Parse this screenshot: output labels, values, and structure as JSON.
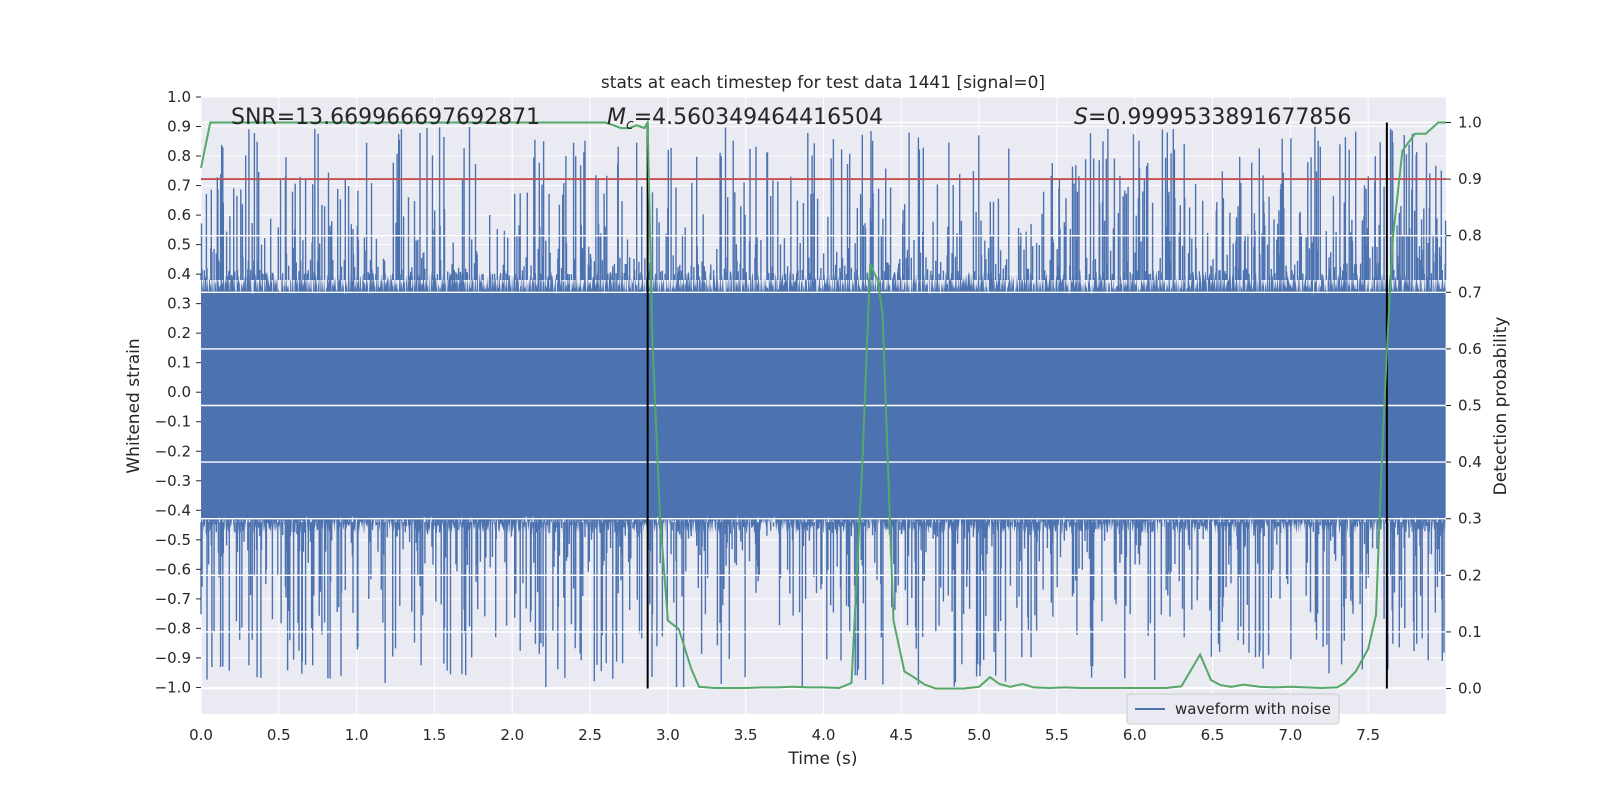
{
  "chart_data": {
    "type": "line",
    "title": "stats at each timestep for test data 1441 [signal=0]",
    "xlabel": "Time (s)",
    "ylabel_left": "Whitened strain",
    "ylabel_right": "Detection probability",
    "xlim": [
      0.0,
      8.0
    ],
    "ylim_left": [
      -1.09,
      1.0
    ],
    "ylim_right": [
      -0.045,
      1.045
    ],
    "x_ticks": [
      0.0,
      0.5,
      1.0,
      1.5,
      2.0,
      2.5,
      3.0,
      3.5,
      4.0,
      4.5,
      5.0,
      5.5,
      6.0,
      6.5,
      7.0,
      7.5
    ],
    "x_tick_labels": [
      "0.0",
      "0.5",
      "1.0",
      "1.5",
      "2.0",
      "2.5",
      "3.0",
      "3.5",
      "4.0",
      "4.5",
      "5.0",
      "5.5",
      "6.0",
      "6.5",
      "7.0",
      "7.5"
    ],
    "y_left_ticks": [
      1.0,
      0.9,
      0.8,
      0.7,
      0.6,
      0.5,
      0.4,
      0.3,
      0.2,
      0.1,
      0.0,
      -0.1,
      -0.2,
      -0.3,
      -0.4,
      -0.5,
      -0.6,
      -0.7,
      -0.8,
      -0.9,
      -1.0
    ],
    "y_left_tick_labels": [
      "1.0",
      "0.9",
      "0.8",
      "0.7",
      "0.6",
      "0.5",
      "0.4",
      "0.3",
      "0.2",
      "0.1",
      "0.0",
      "−0.1",
      "−0.2",
      "−0.3",
      "−0.4",
      "−0.5",
      "−0.6",
      "−0.7",
      "−0.8",
      "−0.9",
      "−1.0"
    ],
    "y_right_ticks": [
      1.0,
      0.9,
      0.8,
      0.7,
      0.6,
      0.5,
      0.4,
      0.3,
      0.2,
      0.1,
      0.0
    ],
    "y_right_tick_labels": [
      "1.0",
      "0.9",
      "0.8",
      "0.7",
      "0.6",
      "0.5",
      "0.4",
      "0.3",
      "0.2",
      "0.1",
      "0.0"
    ],
    "grid": true,
    "annotations": {
      "snr": "SNR=13.669966697692871",
      "mc_symbol": "M",
      "mc_subscript": "c",
      "mc_value": "=4.560349464416504",
      "s_symbol": "S",
      "s_value": "=0.9999533891677856"
    },
    "threshold": {
      "value": 0.9,
      "axis": "right",
      "color": "#c44e52"
    },
    "vertical_markers": [
      2.87,
      7.62
    ],
    "waveform": {
      "name": "waveform with noise",
      "color": "#4c72b0",
      "description_range": [
        -1.0,
        0.9
      ]
    },
    "probability": {
      "color": "#55a868",
      "x": [
        0.0,
        0.06,
        0.12,
        0.2,
        0.3,
        0.4,
        0.6,
        0.8,
        1.0,
        1.5,
        2.0,
        2.5,
        2.6,
        2.7,
        2.75,
        2.8,
        2.85,
        2.87,
        2.9,
        2.95,
        3.0,
        3.07,
        3.15,
        3.2,
        3.3,
        3.4,
        3.5,
        3.6,
        3.7,
        3.8,
        3.9,
        4.0,
        4.1,
        4.18,
        4.25,
        4.3,
        4.35,
        4.38,
        4.45,
        4.52,
        4.58,
        4.65,
        4.72,
        4.8,
        4.9,
        5.0,
        5.07,
        5.13,
        5.2,
        5.28,
        5.35,
        5.45,
        5.55,
        5.65,
        5.8,
        6.0,
        6.2,
        6.3,
        6.42,
        6.49,
        6.55,
        6.62,
        6.7,
        6.8,
        6.9,
        7.0,
        7.1,
        7.2,
        7.3,
        7.35,
        7.42,
        7.5,
        7.55,
        7.58,
        7.62,
        7.66,
        7.72,
        7.8,
        7.87,
        7.95,
        8.0
      ],
      "y": [
        0.92,
        1.0,
        1.0,
        1.0,
        1.0,
        1.0,
        1.0,
        1.0,
        1.0,
        1.0,
        1.0,
        1.0,
        1.0,
        0.99,
        0.99,
        0.995,
        0.99,
        1.0,
        0.62,
        0.3,
        0.12,
        0.105,
        0.035,
        0.003,
        0.001,
        0.001,
        0.001,
        0.002,
        0.002,
        0.003,
        0.002,
        0.002,
        0.001,
        0.01,
        0.4,
        0.75,
        0.72,
        0.66,
        0.12,
        0.03,
        0.02,
        0.007,
        0.0,
        0.0,
        0.0,
        0.003,
        0.02,
        0.008,
        0.003,
        0.008,
        0.002,
        0.001,
        0.002,
        0.001,
        0.001,
        0.001,
        0.001,
        0.004,
        0.06,
        0.015,
        0.006,
        0.003,
        0.007,
        0.003,
        0.002,
        0.003,
        0.002,
        0.001,
        0.002,
        0.01,
        0.03,
        0.07,
        0.13,
        0.35,
        0.6,
        0.8,
        0.95,
        0.98,
        0.98,
        1.0,
        1.0
      ]
    },
    "legend": {
      "entries": [
        "waveform with noise"
      ],
      "placement": "lower-right"
    }
  }
}
